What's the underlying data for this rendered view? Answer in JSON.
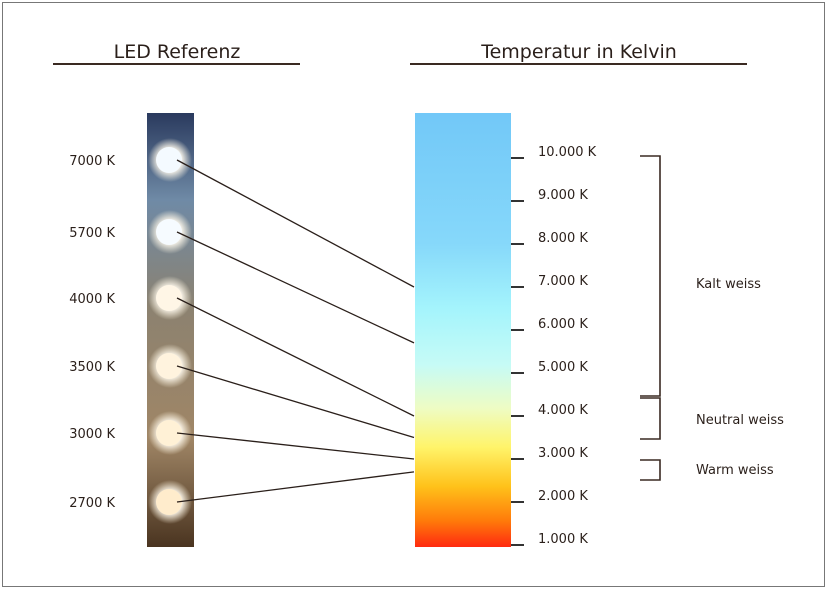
{
  "left_title": "LED Referenz",
  "right_title": "Temperatur in Kelvin",
  "led_labels": [
    "7000 K",
    "5700 K",
    "4000 K",
    "3500 K",
    "3000 K",
    "2700 K"
  ],
  "led_kelvin": [
    7000,
    5700,
    4000,
    3500,
    3000,
    2700
  ],
  "scale_labels": [
    "10.000 K",
    "9.000 K",
    "8.000 K",
    "7.000 K",
    "6.000 K",
    "5.000 K",
    "4.000 K",
    "3.000 K",
    "2.000 K",
    "1.000 K"
  ],
  "scale_values": [
    10000,
    9000,
    8000,
    7000,
    6000,
    5000,
    4000,
    3000,
    2000,
    1000
  ],
  "categories": [
    {
      "label": "Kalt weiss",
      "from": 4000,
      "to": 10000
    },
    {
      "label": "Neutral weiss",
      "from": 3000,
      "to": 4000
    },
    {
      "label": "Warm weiss",
      "from": 2500,
      "to": 3000
    }
  ],
  "colors": {
    "line": "#3a2a22",
    "text": "#2a1f1a",
    "gradient_top": "#6ec6f8",
    "gradient_mid": "#a8f6fb",
    "gradient_yellow": "#fff56a",
    "gradient_bottom": "#ff2a10"
  }
}
